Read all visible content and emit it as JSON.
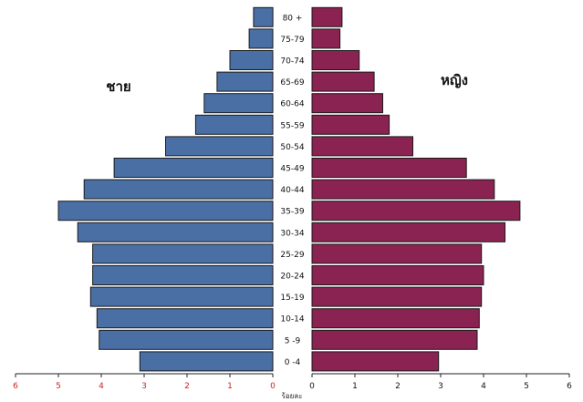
{
  "chart_data": {
    "type": "bar",
    "orientation": "horizontal",
    "subtype": "population-pyramid",
    "categories": [
      "0 -4",
      "5 -9",
      "10-14",
      "15-19",
      "20-24",
      "25-29",
      "30-34",
      "35-39",
      "40-44",
      "45-49",
      "50-54",
      "55-59",
      "60-64",
      "65-69",
      "70-74",
      "75-79",
      "80 +"
    ],
    "series": [
      {
        "name": "ชาย",
        "side": "left",
        "color": "#4a6fa5",
        "values": [
          3.1,
          4.05,
          4.1,
          4.25,
          4.2,
          4.2,
          4.55,
          5.0,
          4.4,
          3.7,
          2.5,
          1.8,
          1.6,
          1.3,
          1.0,
          0.55,
          0.45
        ]
      },
      {
        "name": "หญิง",
        "side": "right",
        "color": "#8b2352",
        "values": [
          2.95,
          3.85,
          3.9,
          3.95,
          4.0,
          3.95,
          4.5,
          4.85,
          4.25,
          3.6,
          2.35,
          1.8,
          1.65,
          1.45,
          1.1,
          0.65,
          0.7
        ]
      }
    ],
    "x_ticks_left": [
      "6",
      "5",
      "4",
      "3",
      "2",
      "1",
      "0"
    ],
    "x_ticks_right": [
      "0",
      "1",
      "2",
      "3",
      "4",
      "5",
      "6"
    ],
    "xlabel": "ร้อยละ",
    "xlim": [
      0,
      6
    ],
    "grid": false,
    "colors": {
      "male": "#4a6fa5",
      "female": "#8b2352",
      "left_tick_labels": "#cc2222",
      "bar_outline": "#1a1a1a"
    }
  }
}
